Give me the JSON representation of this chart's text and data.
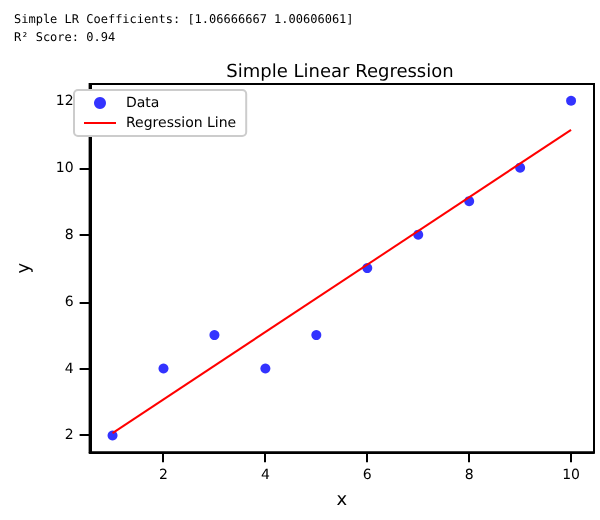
{
  "chart_data": {
    "type": "scatter",
    "title": "Simple Linear Regression",
    "xlabel": "x",
    "ylabel": "y",
    "annotations": [
      "Simple LR Coefficients: [1.06666667 1.00606061]",
      "R² Score: 0.94"
    ],
    "x": [
      1,
      2,
      3,
      4,
      5,
      6,
      7,
      8,
      9,
      10
    ],
    "series": [
      {
        "name": "Data",
        "color": "#0000ff",
        "marker": "circle",
        "values": [
          2,
          4,
          5,
          4,
          5,
          7,
          8,
          9,
          10,
          12
        ]
      },
      {
        "name": "Regression Line",
        "type": "line",
        "color": "#ff0000",
        "marker": "none",
        "x": [
          1,
          10
        ],
        "values": [
          2.07,
          11.13
        ]
      }
    ],
    "xlim": [
      0.55,
      10.45
    ],
    "ylim": [
      1.5,
      12.5
    ],
    "xticks": [
      2,
      4,
      6,
      8,
      10
    ],
    "yticks": [
      2,
      4,
      6,
      8,
      10,
      12
    ],
    "grid": false,
    "legend": "top left"
  }
}
